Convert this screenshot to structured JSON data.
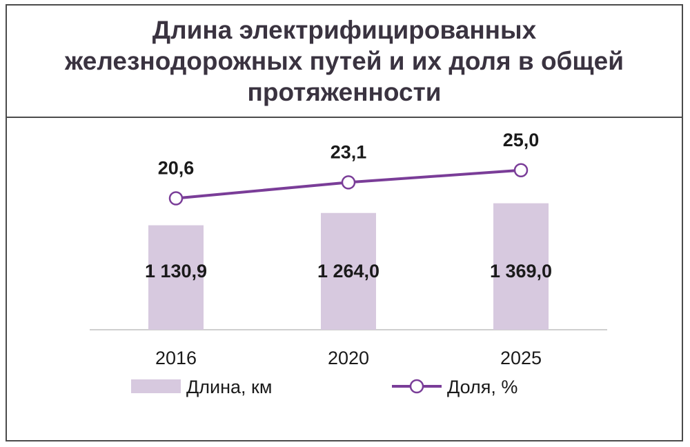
{
  "title": "Длина электрифицированных железнодорожных путей и их доля в общей протяженности",
  "colors": {
    "bar": "#d7c9df",
    "line": "#7a3d98",
    "marker_fill": "#ffffff",
    "text": "#1a1a1a",
    "axis": "#bfbfbf"
  },
  "chart_data": {
    "type": "bar",
    "categories": [
      "2016",
      "2020",
      "2025"
    ],
    "series": [
      {
        "name": "Длина, км",
        "type": "bar",
        "axis": "primary",
        "values": [
          1130.9,
          1264.0,
          1369.0
        ],
        "labels": [
          "1 130,9",
          "1 264,0",
          "1 369,0"
        ]
      },
      {
        "name": "Доля, %",
        "type": "line",
        "axis": "secondary",
        "marker": "circle",
        "values": [
          20.6,
          23.1,
          25.0
        ],
        "labels": [
          "20,6",
          "23,1",
          "25,0"
        ]
      }
    ],
    "ylim": [
      0,
      2300
    ],
    "y2lim": [
      0,
      33.3
    ],
    "grid": false,
    "legend": "bottom"
  }
}
